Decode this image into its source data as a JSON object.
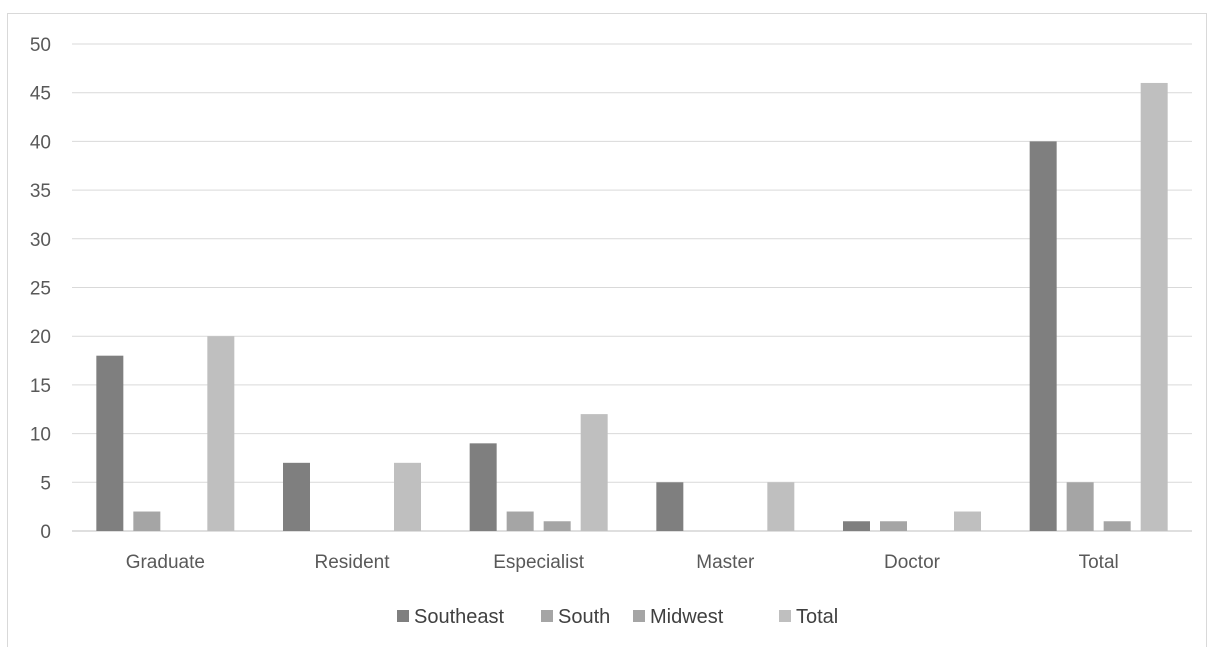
{
  "chart_data": {
    "type": "bar",
    "categories": [
      "Graduate",
      "Resident",
      "Especialist",
      "Master",
      "Doctor",
      "Total"
    ],
    "series": [
      {
        "name": "Southeast",
        "color": "#7f7f7f",
        "values": [
          18,
          7,
          9,
          5,
          1,
          40
        ]
      },
      {
        "name": "South",
        "color": "#a5a5a5",
        "values": [
          2,
          0,
          2,
          0,
          1,
          5
        ]
      },
      {
        "name": "Midwest",
        "color": "#a5a5a5",
        "values": [
          0,
          0,
          1,
          0,
          0,
          1
        ]
      },
      {
        "name": "Total",
        "color": "#bfbfbf",
        "values": [
          20,
          7,
          12,
          5,
          2,
          46
        ]
      }
    ],
    "yticks": [
      "0",
      "5",
      "10",
      "15",
      "20",
      "25",
      "30",
      "35",
      "40",
      "45",
      "50"
    ],
    "ylim": [
      0,
      50
    ],
    "grid": true,
    "legend_position": "bottom",
    "gridline_color": "#d9d9d9"
  }
}
